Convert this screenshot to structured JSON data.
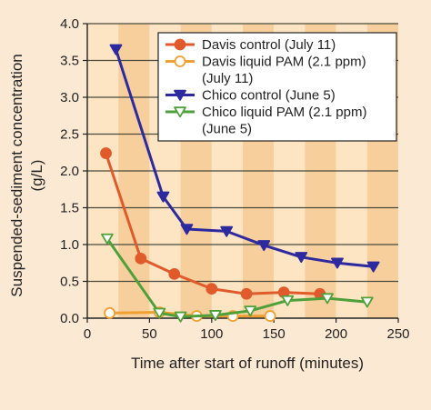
{
  "chart_data": {
    "type": "line",
    "xlabel": "Time after start of runoff (minutes)",
    "ylabel_line1": "Suspended-sediment concentration",
    "ylabel_line2": "(g/L)",
    "xlim": [
      0,
      250
    ],
    "ylim": [
      0,
      4.0
    ],
    "xticks": [
      0,
      50,
      100,
      150,
      200,
      250
    ],
    "xtick_labels": [
      "0",
      "50",
      "100",
      "150",
      "200",
      "250"
    ],
    "yticks": [
      0.0,
      0.5,
      1.0,
      1.5,
      2.0,
      2.5,
      3.0,
      3.5,
      4.0
    ],
    "ytick_labels": [
      "0.0",
      "0.5",
      "1.0",
      "1.5",
      "2.0",
      "2.5",
      "3.0",
      "3.5",
      "4.0"
    ],
    "grid": "horizontal",
    "legend_position": "top-right",
    "colors": {
      "background": "#fbe9d3",
      "band_light": "#fde5c3",
      "band_dark": "#f7cf9d",
      "grid": "#4a4a3c",
      "axis": "#222222",
      "davis": "#e05a2b",
      "davis_pam": "#f0a030",
      "chico": "#2c2a9e",
      "chico_pam": "#4fa03a"
    },
    "series": [
      {
        "name": "Davis control (July 11)",
        "legend_lines": [
          "Davis control (July 11)"
        ],
        "color": "#e05a2b",
        "marker": "circle-filled",
        "x": [
          15,
          43,
          70,
          100,
          128,
          158,
          187
        ],
        "y": [
          2.24,
          0.81,
          0.6,
          0.4,
          0.33,
          0.35,
          0.33
        ]
      },
      {
        "name": "Davis liquid PAM (2.1 ppm) (July 11)",
        "legend_lines": [
          "Davis liquid PAM (2.1 ppm)",
          "(July 11)"
        ],
        "color": "#f0a030",
        "marker": "circle-open",
        "x": [
          18,
          58,
          88,
          117,
          147
        ],
        "y": [
          0.07,
          0.08,
          0.03,
          0.03,
          0.03
        ]
      },
      {
        "name": "Chico control (June 5)",
        "legend_lines": [
          "Chico control (June 5)"
        ],
        "color": "#2c2a9e",
        "marker": "triangle-down-filled",
        "x": [
          23,
          61,
          80,
          112,
          142,
          172,
          201,
          230
        ],
        "y": [
          3.65,
          1.65,
          1.21,
          1.18,
          0.99,
          0.83,
          0.75,
          0.7
        ]
      },
      {
        "name": "Chico liquid PAM (2.1 ppm) (June 5)",
        "legend_lines": [
          "Chico liquid PAM (2.1 ppm)",
          "(June 5)"
        ],
        "color": "#4fa03a",
        "marker": "triangle-down-open",
        "x": [
          16,
          58,
          75,
          103,
          131,
          161,
          193,
          225
        ],
        "y": [
          1.08,
          0.07,
          0.02,
          0.04,
          0.1,
          0.24,
          0.27,
          0.22
        ]
      }
    ]
  }
}
